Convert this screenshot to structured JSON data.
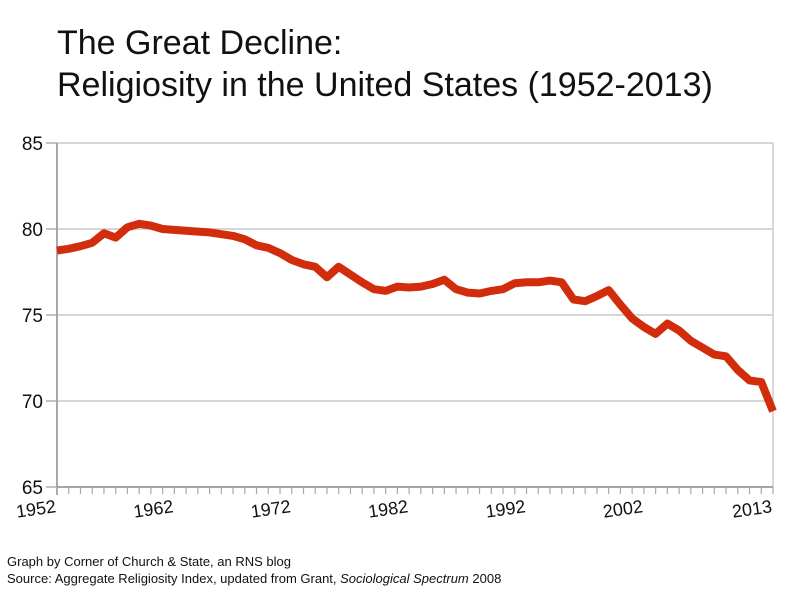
{
  "title": {
    "line1": "The Great Decline:",
    "line2": "Religiosity in the United States (1952-2013)"
  },
  "footer": {
    "line1": "Graph by Corner of Church & State, an RNS blog",
    "line2_prefix": "Source: Aggregate Religiosity Index, updated from Grant, ",
    "line2_italic": "Sociological Spectrum",
    "line2_suffix": " 2008"
  },
  "colors": {
    "line": "#d12c0c",
    "gridline": "#c9c9c9",
    "axis": "#9a9a9a",
    "tick": "#a8a8a8",
    "text": "#111111",
    "background": "#ffffff"
  },
  "chart_data": {
    "type": "line",
    "title": "The Great Decline: Religiosity in the United States (1952-2013)",
    "xlabel": "",
    "ylabel": "",
    "xlim": [
      1952,
      2013
    ],
    "ylim": [
      65,
      85
    ],
    "grid": "horizontal",
    "legend": "none",
    "y_ticks": [
      65,
      70,
      75,
      80,
      85
    ],
    "x_tick_labels": [
      {
        "label": "1952",
        "year": 1952
      },
      {
        "label": "1962",
        "year": 1962
      },
      {
        "label": "1972",
        "year": 1972
      },
      {
        "label": "1982",
        "year": 1982
      },
      {
        "label": "1992",
        "year": 1992
      },
      {
        "label": "2002",
        "year": 2002
      },
      {
        "label": "2013",
        "year": 2013
      }
    ],
    "minor_x_tick_step": 1,
    "x": [
      1952,
      1953,
      1954,
      1955,
      1956,
      1957,
      1958,
      1959,
      1960,
      1961,
      1962,
      1963,
      1964,
      1965,
      1966,
      1967,
      1968,
      1969,
      1970,
      1971,
      1972,
      1973,
      1974,
      1975,
      1976,
      1977,
      1978,
      1979,
      1980,
      1981,
      1982,
      1983,
      1984,
      1985,
      1986,
      1987,
      1988,
      1989,
      1990,
      1991,
      1992,
      1993,
      1994,
      1995,
      1996,
      1997,
      1998,
      1999,
      2000,
      2001,
      2002,
      2003,
      2004,
      2005,
      2006,
      2007,
      2008,
      2009,
      2010,
      2011,
      2012,
      2013
    ],
    "series": [
      {
        "name": "Aggregate Religiosity Index",
        "values": [
          78.75,
          78.85,
          79.0,
          79.2,
          79.75,
          79.5,
          80.1,
          80.3,
          80.2,
          80.0,
          79.95,
          79.9,
          79.85,
          79.8,
          79.7,
          79.6,
          79.4,
          79.05,
          78.9,
          78.6,
          78.2,
          77.95,
          77.8,
          77.2,
          77.8,
          77.35,
          76.9,
          76.5,
          76.4,
          76.65,
          76.6,
          76.65,
          76.8,
          77.05,
          76.5,
          76.3,
          76.25,
          76.4,
          76.5,
          76.85,
          76.9,
          76.9,
          77.0,
          76.9,
          75.9,
          75.8,
          76.1,
          76.45,
          75.6,
          74.8,
          74.3,
          73.9,
          74.5,
          74.1,
          73.5,
          73.1,
          72.7,
          72.6,
          71.8,
          71.2,
          71.1,
          69.4
        ]
      }
    ]
  }
}
